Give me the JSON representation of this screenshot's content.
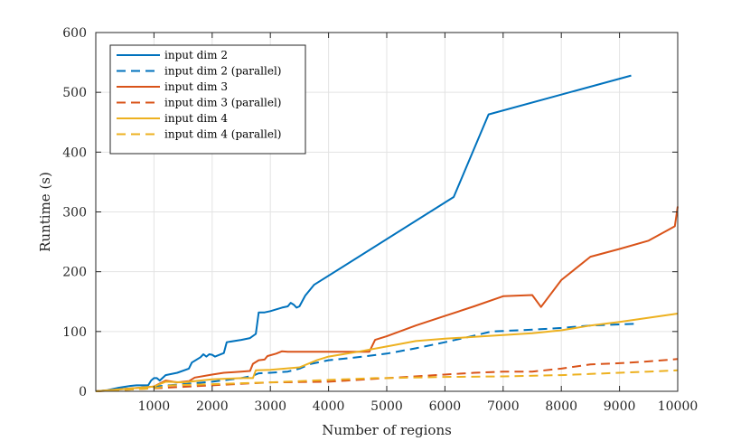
{
  "chart_data": {
    "type": "line",
    "title": "",
    "xlabel": "Number of regions",
    "ylabel": "Runtime (s)",
    "xlim": [
      0,
      10000
    ],
    "ylim": [
      0,
      600
    ],
    "xticks": [
      1000,
      2000,
      3000,
      4000,
      5000,
      6000,
      7000,
      8000,
      9000,
      10000
    ],
    "yticks": [
      0,
      100,
      200,
      300,
      400,
      500,
      600
    ],
    "grid": true,
    "legend_position": "top-left",
    "series": [
      {
        "name": "input dim 2",
        "color": "#0072BD",
        "dash": "solid",
        "x": [
          0,
          200,
          400,
          600,
          700,
          800,
          900,
          950,
          1000,
          1050,
          1100,
          1200,
          1400,
          1600,
          1650,
          1800,
          1850,
          1900,
          1950,
          2000,
          2050,
          2200,
          2250,
          2500,
          2650,
          2750,
          2800,
          2900,
          3000,
          3200,
          3300,
          3350,
          3400,
          3450,
          3500,
          3600,
          3750,
          6150,
          6750,
          9200
        ],
        "y": [
          0,
          2,
          6,
          9,
          10,
          10,
          10,
          18,
          22,
          22,
          18,
          27,
          31,
          38,
          48,
          57,
          62,
          58,
          62,
          61,
          58,
          64,
          82,
          86,
          89,
          96,
          132,
          132,
          134,
          140,
          142,
          148,
          145,
          140,
          142,
          160,
          178,
          325,
          463,
          528
        ]
      },
      {
        "name": "input dim 2 (parallel)",
        "color": "#0072BD",
        "dash": "dashed",
        "x": [
          0,
          500,
          1000,
          1500,
          2000,
          2500,
          2700,
          2800,
          3000,
          3300,
          3500,
          3700,
          4000,
          4500,
          5000,
          5500,
          6000,
          6500,
          6800,
          7500,
          8000,
          8500,
          9300
        ],
        "y": [
          0,
          4,
          8,
          12,
          16,
          22,
          26,
          30,
          31,
          33,
          38,
          46,
          52,
          57,
          63,
          72,
          82,
          93,
          100,
          103,
          106,
          110,
          113
        ]
      },
      {
        "name": "input dim 3",
        "color": "#D95319",
        "dash": "solid",
        "x": [
          0,
          500,
          1000,
          1200,
          1400,
          1600,
          1700,
          2000,
          2200,
          2500,
          2650,
          2700,
          2800,
          2900,
          2950,
          3100,
          3200,
          3300,
          3600,
          4000,
          4700,
          4800,
          5000,
          5500,
          6000,
          6500,
          7000,
          7500,
          7650,
          8000,
          8500,
          9000,
          9500,
          9950,
          10000
        ],
        "y": [
          0,
          4,
          8,
          18,
          15,
          17,
          23,
          28,
          31,
          33,
          34,
          46,
          52,
          53,
          59,
          63,
          67,
          66,
          66,
          66,
          66,
          86,
          92,
          110,
          126,
          142,
          159,
          161,
          141,
          186,
          225,
          238,
          252,
          276,
          309
        ]
      },
      {
        "name": "input dim 3 (parallel)",
        "color": "#D95319",
        "dash": "dashed",
        "x": [
          0,
          1000,
          2000,
          3000,
          4000,
          5000,
          6000,
          6500,
          7000,
          7500,
          8000,
          8500,
          9000,
          9500,
          10000
        ],
        "y": [
          0,
          5,
          10,
          15,
          16,
          22,
          28,
          31,
          33,
          33,
          38,
          45,
          47,
          50,
          54
        ]
      },
      {
        "name": "input dim 4",
        "color": "#EDB120",
        "dash": "solid",
        "x": [
          0,
          500,
          1000,
          1200,
          1500,
          2000,
          2500,
          2700,
          2750,
          3000,
          3500,
          3800,
          4000,
          4500,
          5000,
          5500,
          6000,
          6500,
          7000,
          7500,
          8000,
          8500,
          9000,
          9500,
          10000
        ],
        "y": [
          0,
          4,
          8,
          16,
          15,
          20,
          22,
          22,
          35,
          36,
          40,
          52,
          58,
          66,
          75,
          84,
          88,
          91,
          94,
          97,
          102,
          110,
          116,
          123,
          130
        ]
      },
      {
        "name": "input dim 4 (parallel)",
        "color": "#EDB120",
        "dash": "dashed",
        "x": [
          0,
          1000,
          1300,
          2000,
          3000,
          4000,
          4800,
          5000,
          6000,
          7000,
          8000,
          8500,
          9000,
          9500,
          10000
        ],
        "y": [
          0,
          5,
          10,
          12,
          15,
          19,
          22,
          22,
          24,
          25,
          27,
          29,
          31,
          33,
          35
        ]
      }
    ]
  }
}
